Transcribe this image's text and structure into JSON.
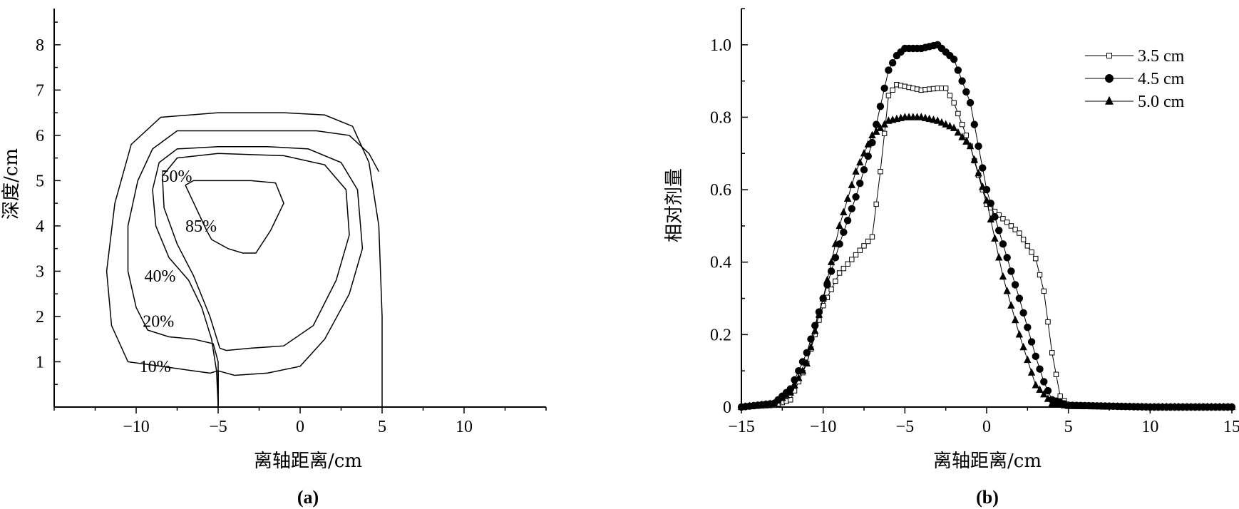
{
  "chart_data": [
    {
      "type": "contour",
      "panel_label": "(a)",
      "xlabel": "离轴距离/cm",
      "ylabel": "深度/cm",
      "xlim": [
        -15,
        15
      ],
      "ylim": [
        0,
        8.8
      ],
      "x_ticks": [
        -10,
        -5,
        0,
        5,
        10
      ],
      "x_tick_labels": [
        "−10",
        "−5",
        "0",
        "5",
        "10"
      ],
      "y_ticks": [
        1,
        2,
        3,
        4,
        5,
        6,
        7,
        8
      ],
      "y_tick_labels": [
        "1",
        "2",
        "3",
        "4",
        "5",
        "6",
        "7",
        "8"
      ],
      "contours": [
        {
          "level": "10%",
          "label_pos": [
            -9.8,
            0.9
          ],
          "points": [
            [
              5,
              0
            ],
            [
              5,
              2
            ],
            [
              4.8,
              4
            ],
            [
              4.2,
              5.4
            ],
            [
              3.2,
              6.2
            ],
            [
              1.5,
              6.45
            ],
            [
              -1,
              6.5
            ],
            [
              -5,
              6.5
            ],
            [
              -8.5,
              6.4
            ],
            [
              -10.3,
              5.8
            ],
            [
              -11.3,
              4.5
            ],
            [
              -11.8,
              3
            ],
            [
              -11.5,
              1.8
            ],
            [
              -10.5,
              1.0
            ],
            [
              -8.5,
              0.9
            ],
            [
              -6.5,
              0.8
            ],
            [
              -5.5,
              0.75
            ],
            [
              -5,
              0.8
            ],
            [
              -5,
              0
            ]
          ]
        },
        {
          "level": "20%",
          "label_pos": [
            -9.6,
            1.9
          ],
          "points": [
            [
              4.8,
              5.2
            ],
            [
              4.2,
              5.6
            ],
            [
              3.0,
              6.0
            ],
            [
              1.0,
              6.1
            ],
            [
              -2,
              6.1
            ],
            [
              -5,
              6.1
            ],
            [
              -7.5,
              6.1
            ],
            [
              -9.0,
              5.7
            ],
            [
              -9.9,
              5.0
            ],
            [
              -10.5,
              4.0
            ],
            [
              -10.5,
              3.0
            ],
            [
              -10.0,
              2.2
            ],
            [
              -9.3,
              1.7
            ],
            [
              -8,
              1.55
            ],
            [
              -6.5,
              1.5
            ],
            [
              -5.3,
              1.4
            ],
            [
              -5,
              1.0
            ],
            [
              -5,
              0
            ]
          ]
        },
        {
          "level": "40%",
          "label_pos": [
            -9.5,
            2.9
          ],
          "points": [
            [
              -5,
              0.05
            ],
            [
              -5.1,
              0.8
            ],
            [
              -5.4,
              1.5
            ],
            [
              -6,
              2.2
            ],
            [
              -6.8,
              2.8
            ],
            [
              -8,
              3.3
            ],
            [
              -8.8,
              4.0
            ],
            [
              -9.0,
              4.8
            ],
            [
              -8.6,
              5.4
            ],
            [
              -7.5,
              5.7
            ],
            [
              -5,
              5.75
            ],
            [
              -2,
              5.75
            ],
            [
              0.5,
              5.7
            ],
            [
              2.5,
              5.4
            ],
            [
              3.5,
              4.8
            ],
            [
              3.8,
              3.5
            ],
            [
              3.0,
              2.5
            ],
            [
              1.5,
              1.5
            ],
            [
              0,
              0.9
            ],
            [
              -2,
              0.75
            ],
            [
              -4,
              0.7
            ],
            [
              -5,
              0.8
            ],
            [
              -5,
              0.05
            ]
          ]
        },
        {
          "level": "50%",
          "label_pos": [
            -8.5,
            5.1
          ],
          "points": [
            [
              -4.9,
              1.3
            ],
            [
              -5.5,
              2.0
            ],
            [
              -6.5,
              2.9
            ],
            [
              -7.5,
              3.6
            ],
            [
              -8.3,
              4.4
            ],
            [
              -8.4,
              5.1
            ],
            [
              -7.5,
              5.5
            ],
            [
              -5,
              5.6
            ],
            [
              -1,
              5.55
            ],
            [
              1.5,
              5.35
            ],
            [
              2.8,
              4.8
            ],
            [
              3.0,
              3.8
            ],
            [
              2.2,
              2.8
            ],
            [
              0.8,
              1.8
            ],
            [
              -1,
              1.35
            ],
            [
              -3,
              1.3
            ],
            [
              -4.5,
              1.25
            ],
            [
              -4.9,
              1.3
            ]
          ]
        },
        {
          "level": "85%",
          "label_pos": [
            -7.0,
            4.0
          ],
          "points": [
            [
              -7.0,
              4.9
            ],
            [
              -6.5,
              5.0
            ],
            [
              -5,
              5.0
            ],
            [
              -3,
              5.0
            ],
            [
              -1.5,
              4.95
            ],
            [
              -1.0,
              4.5
            ],
            [
              -1.8,
              3.9
            ],
            [
              -2.7,
              3.4
            ],
            [
              -3.5,
              3.4
            ],
            [
              -4.4,
              3.5
            ],
            [
              -5.4,
              3.7
            ],
            [
              -5.7,
              3.9
            ],
            [
              -7.0,
              4.9
            ]
          ]
        }
      ]
    },
    {
      "type": "line",
      "panel_label": "(b)",
      "xlabel": "离轴距离/cm",
      "ylabel": "相对剂量",
      "xlim": [
        -15,
        15
      ],
      "ylim": [
        0,
        1.1
      ],
      "x_ticks": [
        -15,
        -10,
        -5,
        0,
        5,
        10,
        15
      ],
      "x_tick_labels": [
        "−15",
        "−10",
        "−5",
        "0",
        "5",
        "10",
        "15"
      ],
      "y_ticks": [
        0,
        0.2,
        0.4,
        0.6,
        0.8,
        1.0
      ],
      "y_tick_labels": [
        "0",
        "0.2",
        "0.4",
        "0.6",
        "0.8",
        "1.0"
      ],
      "legend_position": "top-right",
      "series": [
        {
          "name": "3.5 cm",
          "marker": "open-square",
          "x": [
            -15,
            -13,
            -12,
            -11,
            -10,
            -9,
            -8,
            -7,
            -6.5,
            -6,
            -5.5,
            -5,
            -4,
            -3,
            -2.5,
            -2,
            -1,
            0,
            1,
            2,
            3,
            3.5,
            4,
            4.5,
            5,
            10,
            15
          ],
          "y": [
            0,
            0.005,
            0.02,
            0.12,
            0.28,
            0.37,
            0.42,
            0.47,
            0.65,
            0.86,
            0.89,
            0.885,
            0.875,
            0.88,
            0.88,
            0.84,
            0.72,
            0.56,
            0.52,
            0.48,
            0.41,
            0.32,
            0.15,
            0.03,
            0.005,
            0,
            0
          ]
        },
        {
          "name": "4.5 cm",
          "marker": "filled-circle",
          "x": [
            -15,
            -13,
            -12,
            -11,
            -10,
            -9,
            -8,
            -7,
            -6,
            -5.5,
            -5,
            -4,
            -3,
            -2,
            -1,
            0,
            1,
            2,
            3,
            3.5,
            4,
            5,
            10,
            15
          ],
          "y": [
            0,
            0.01,
            0.05,
            0.15,
            0.3,
            0.45,
            0.58,
            0.73,
            0.93,
            0.97,
            0.99,
            0.99,
            1.0,
            0.96,
            0.84,
            0.6,
            0.45,
            0.3,
            0.14,
            0.07,
            0.02,
            0.005,
            0,
            0
          ]
        },
        {
          "name": "5.0 cm",
          "marker": "filled-triangle",
          "x": [
            -15,
            -13,
            -12,
            -11,
            -10,
            -9,
            -8,
            -7,
            -6,
            -5,
            -4,
            -3,
            -2,
            -1,
            0,
            1,
            2,
            3,
            4,
            5,
            10,
            15
          ],
          "y": [
            0,
            0.01,
            0.04,
            0.12,
            0.3,
            0.5,
            0.65,
            0.75,
            0.79,
            0.8,
            0.8,
            0.79,
            0.77,
            0.72,
            0.57,
            0.36,
            0.2,
            0.06,
            0.01,
            0.003,
            0,
            0
          ]
        }
      ]
    }
  ]
}
